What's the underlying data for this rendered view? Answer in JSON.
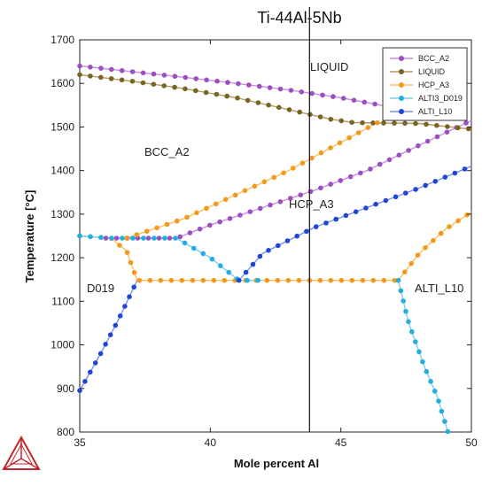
{
  "chart_data": {
    "type": "line",
    "title": "Ti-44Al-5Nb",
    "xlabel": "Mole percent Al",
    "ylabel": "Temperature [°C]",
    "xlim": [
      35,
      50
    ],
    "ylim": [
      800,
      1700
    ],
    "xticks": [
      35,
      40,
      45,
      50
    ],
    "yticks": [
      800,
      900,
      1000,
      1100,
      1200,
      1300,
      1400,
      1500,
      1600,
      1700
    ],
    "grid": false,
    "legend_position": "top-right",
    "colors": {
      "BCC_A2": "#9b4fc0",
      "LIQUID": "#7a6424",
      "HCP_A3": "#f39a1c",
      "ALTI3_D019": "#22aee0",
      "ALTI_L10": "#1f46d6",
      "BCC_A2_line": "#c98fe0",
      "LIQUID_line": "#b39a62",
      "HCP_A3_line": "#f7c069",
      "ALTI3_D019_line": "#7fcfee",
      "ALTI_L10_line": "#7d93e8"
    },
    "series": [
      {
        "name": "BCC_A2",
        "segments": [
          [
            [
              35,
              1640
            ],
            [
              37,
              1627
            ],
            [
              39,
              1614
            ],
            [
              41,
              1600
            ],
            [
              43,
              1585
            ],
            [
              45,
              1567
            ],
            [
              47,
              1545
            ],
            [
              48,
              1535
            ]
          ],
          [
            [
              36,
              1245
            ],
            [
              38.7,
              1245
            ],
            [
              40,
              1275
            ],
            [
              42,
              1315
            ],
            [
              44,
              1355
            ],
            [
              46,
              1400
            ],
            [
              48,
              1458
            ],
            [
              50,
              1515
            ]
          ]
        ]
      },
      {
        "name": "LIQUID",
        "segments": [
          [
            [
              35,
              1620
            ],
            [
              37,
              1605
            ],
            [
              39,
              1588
            ],
            [
              41,
              1567
            ],
            [
              43,
              1540
            ],
            [
              44.6,
              1518
            ],
            [
              45.5,
              1510
            ],
            [
              48,
              1508
            ],
            [
              50,
              1495
            ]
          ]
        ]
      },
      {
        "name": "HCP_A3",
        "segments": [
          [
            [
              35,
              1250
            ],
            [
              36.2,
              1245
            ],
            [
              36.8,
              1215
            ],
            [
              37.2,
              1148
            ],
            [
              44.5,
              1148
            ],
            [
              47.2,
              1148
            ]
          ],
          [
            [
              36.8,
              1245
            ],
            [
              39,
              1290
            ],
            [
              41,
              1345
            ],
            [
              43,
              1400
            ],
            [
              45,
              1465
            ],
            [
              46.4,
              1510
            ]
          ],
          [
            [
              47.2,
              1148
            ],
            [
              48,
              1210
            ],
            [
              49,
              1265
            ],
            [
              50,
              1305
            ]
          ]
        ]
      },
      {
        "name": "ALTI3_D019",
        "segments": [
          [
            [
              35,
              1250
            ],
            [
              36.2,
              1245
            ],
            [
              38.7,
              1245
            ],
            [
              40,
              1200
            ],
            [
              41.1,
              1148
            ],
            [
              42,
              1148
            ]
          ],
          [
            [
              47.2,
              1148
            ],
            [
              47.6,
              1050
            ],
            [
              48.2,
              950
            ],
            [
              48.7,
              880
            ],
            [
              49.1,
              800
            ]
          ]
        ]
      },
      {
        "name": "ALTI_L10",
        "segments": [
          [
            [
              35,
              895
            ],
            [
              35.8,
              980
            ],
            [
              36.5,
              1060
            ],
            [
              37.2,
              1148
            ]
          ],
          [
            [
              41.1,
              1148
            ],
            [
              42,
              1210
            ],
            [
              44,
              1270
            ],
            [
              46,
              1315
            ],
            [
              48,
              1360
            ],
            [
              50,
              1410
            ]
          ]
        ]
      }
    ],
    "vertical_line_x": 43.8,
    "annotations": [
      "LIQUID",
      "BCC_A2",
      "HCP_A3",
      "D019",
      "ALTI_L10"
    ],
    "legend_entries": [
      "BCC_A2",
      "LIQUID",
      "HCP_A3",
      "ALTI3_D019",
      "ALTI_L10"
    ]
  },
  "logo": "thermocalc-triangle-logo"
}
